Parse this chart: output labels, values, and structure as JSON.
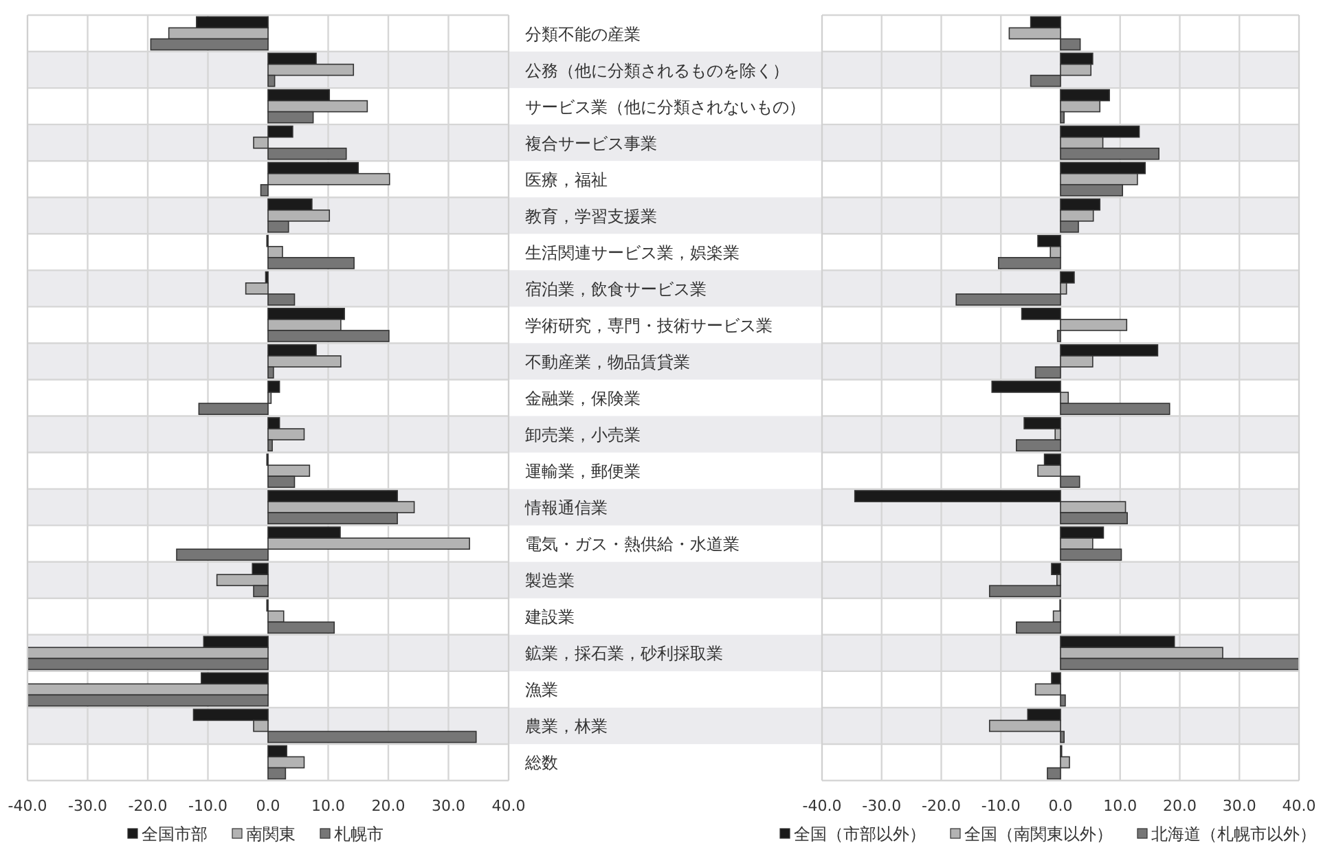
{
  "chart_data": [
    {
      "type": "bar",
      "orientation": "horizontal",
      "categories": [
        null,
        null,
        null,
        null,
        null,
        null,
        null,
        null,
        null,
        null,
        null,
        null,
        null,
        null,
        null,
        null,
        null,
        null,
        null,
        null,
        null
      ],
      "series": [
        {
          "name": "全国市部",
          "color": "#1a1a1a",
          "values": [
            -11.9,
            8.0,
            10.2,
            4.1,
            15.0,
            7.3,
            -0.2,
            -0.4,
            12.7,
            8.0,
            1.9,
            1.9,
            -0.2,
            21.5,
            12.0,
            -2.6,
            -0.2,
            -10.7,
            -11.1,
            -12.4,
            3.1
          ]
        },
        {
          "name": "南関東",
          "color": "#b3b3b3",
          "values": [
            -16.5,
            14.2,
            16.5,
            -2.4,
            20.2,
            10.2,
            2.4,
            -3.7,
            12.1,
            12.1,
            0.5,
            6.0,
            6.9,
            24.3,
            33.5,
            -8.5,
            2.6,
            -40,
            -40,
            -2.4,
            6.0
          ]
        },
        {
          "name": "札幌市",
          "color": "#767676",
          "values": [
            -19.5,
            1.1,
            7.5,
            13.0,
            -1.2,
            3.4,
            14.3,
            4.4,
            20.1,
            0.9,
            -11.5,
            0.7,
            4.4,
            21.5,
            -15.2,
            -2.4,
            11.0,
            -40,
            -40,
            34.6,
            2.9
          ]
        }
      ],
      "xlim": [
        -40,
        40
      ],
      "xticks": [
        {
          "value": -40,
          "label": "-40.0"
        },
        {
          "value": -30,
          "label": "-30.0"
        },
        {
          "value": -20,
          "label": "-20.0"
        },
        {
          "value": -10,
          "label": "-10.0"
        },
        {
          "value": 0,
          "label": "0.0"
        },
        {
          "value": 10,
          "label": "10.0"
        },
        {
          "value": 20,
          "label": "20.0"
        },
        {
          "value": 30,
          "label": "30.0"
        },
        {
          "value": 40,
          "label": "40.0"
        }
      ],
      "tick_labels": "x",
      "grid": true,
      "legend": "bottom"
    },
    {
      "type": "bar",
      "orientation": "horizontal",
      "categories": [
        "分類不能の産業",
        "公務（他に分類されるものを除く）",
        "サービス業（他に分類されないもの）",
        "複合サービス事業",
        "医療，福祉",
        "教育，学習支援業",
        "生活関連サービス業，娯楽業",
        "宿泊業，飲食サービス業",
        "学術研究，専門・技術サービス業",
        "不動産業，物品賃貸業",
        "金融業，保険業",
        "卸売業，小売業",
        "運輸業，郵便業",
        "情報通信業",
        "電気・ガス・熱供給・水道業",
        "製造業",
        "建設業",
        "鉱業，採石業，砂利採取業",
        "漁業",
        "農業，林業",
        "総数"
      ],
      "series": [
        {
          "name": "全国（市部以外）",
          "color": "#1a1a1a",
          "values": [
            -5.0,
            5.4,
            8.2,
            13.2,
            14.2,
            6.6,
            -3.8,
            2.3,
            -6.5,
            16.3,
            -11.5,
            -6.1,
            -2.7,
            -34.5,
            7.2,
            -1.5,
            -0.1,
            19.1,
            -1.5,
            -5.5,
            0.2
          ]
        },
        {
          "name": "全国（南関東以外）",
          "color": "#b3b3b3",
          "values": [
            -8.6,
            5.1,
            6.6,
            7.1,
            12.9,
            5.5,
            -1.7,
            1.0,
            11.1,
            5.4,
            1.3,
            -0.9,
            -3.8,
            10.9,
            5.4,
            -0.6,
            -1.2,
            27.2,
            -4.2,
            -11.9,
            1.5
          ]
        },
        {
          "name": "北海道（札幌市以外）",
          "color": "#767676",
          "values": [
            3.3,
            -5.0,
            0.6,
            16.5,
            10.4,
            3.0,
            -10.4,
            -17.5,
            -0.5,
            -4.2,
            18.3,
            -7.4,
            3.2,
            11.2,
            10.2,
            -11.9,
            -7.4,
            40,
            0.8,
            0.6,
            -2.2
          ]
        }
      ],
      "xlim": [
        -40,
        40
      ],
      "xticks": [
        {
          "value": -40,
          "label": "-40.0"
        },
        {
          "value": -30,
          "label": "-30.0"
        },
        {
          "value": -20,
          "label": "-20.0"
        },
        {
          "value": -10,
          "label": "-10.0"
        },
        {
          "value": 0,
          "label": "0.0"
        },
        {
          "value": 10,
          "label": "10.0"
        },
        {
          "value": 20,
          "label": "20.0"
        },
        {
          "value": 30,
          "label": "30.0"
        },
        {
          "value": 40,
          "label": "40.0"
        }
      ],
      "grid": true,
      "legend": "bottom"
    }
  ]
}
